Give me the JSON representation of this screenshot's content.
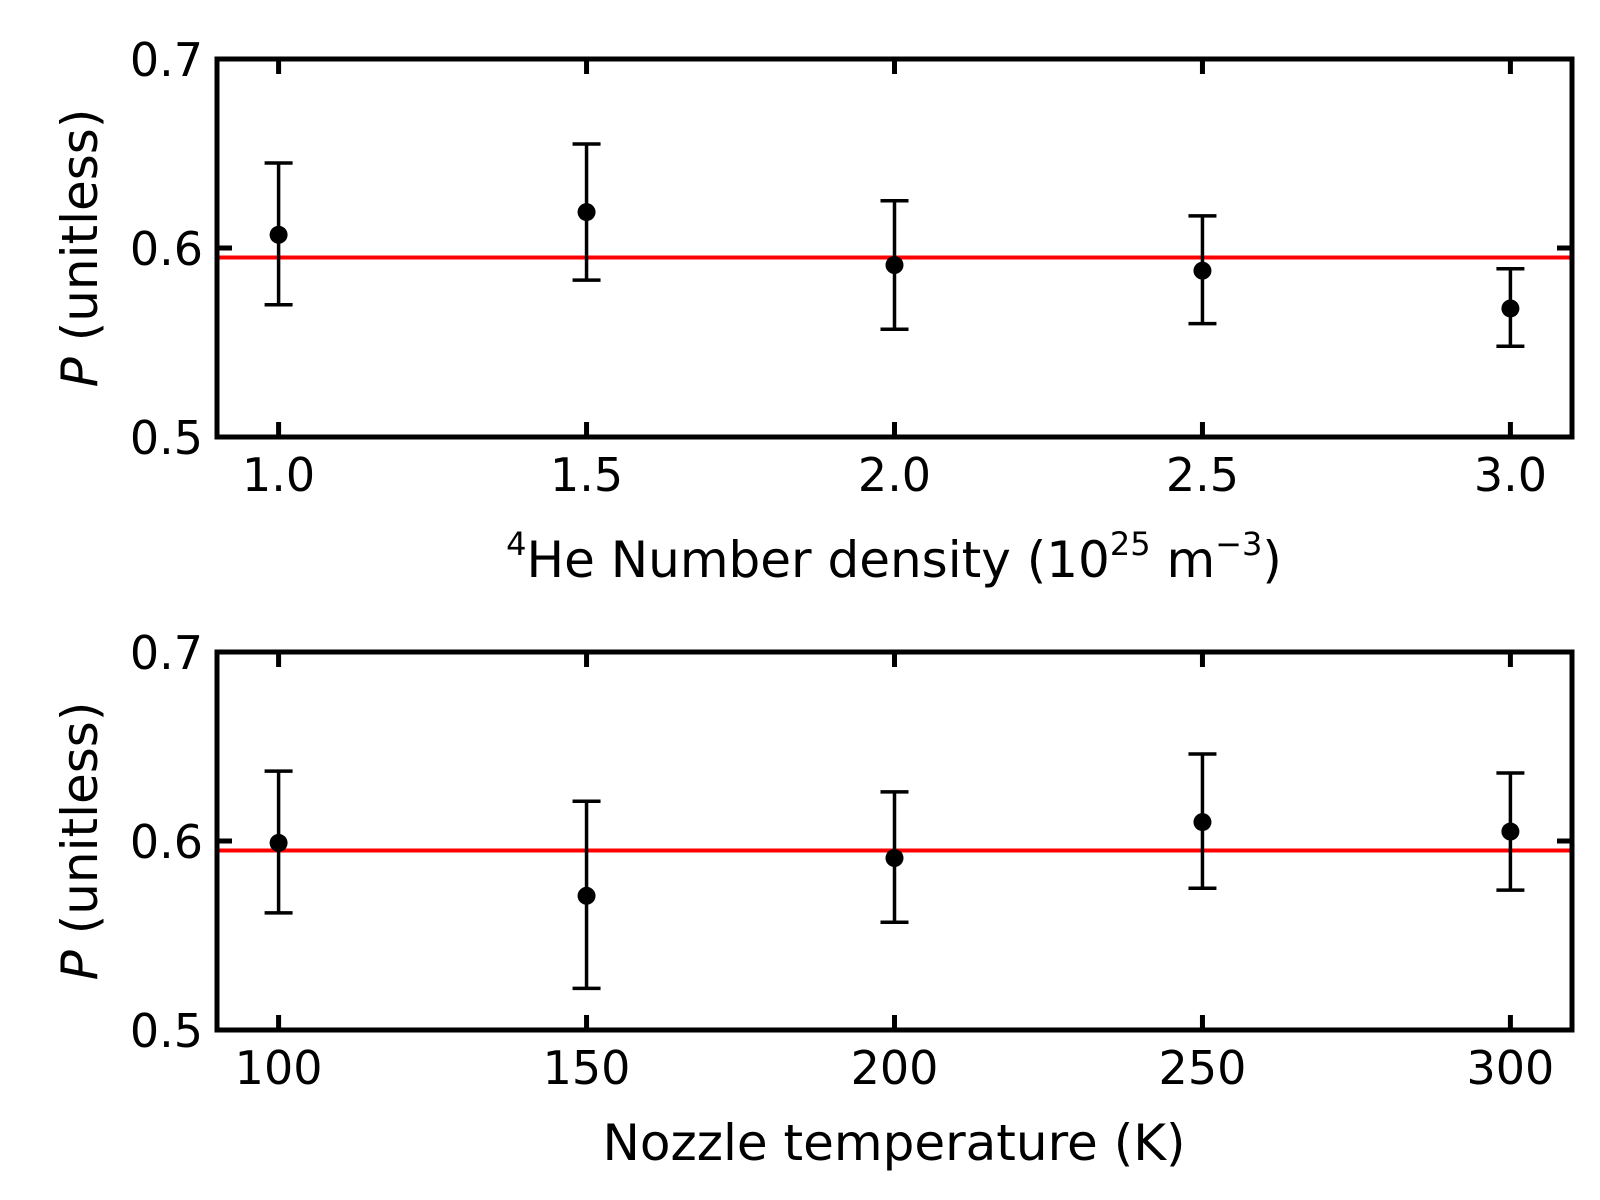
{
  "chart_data": [
    {
      "type": "scatter",
      "title": "",
      "xlabel": {
        "prefix_sup": "4",
        "main": "He Number density (10",
        "sup1": "25",
        "mid": " m",
        "sup2": "−3",
        "suffix": ")"
      },
      "ylabel": {
        "symbol": "P",
        "rest": " (unitless)"
      },
      "xlim": [
        0.9,
        3.1
      ],
      "ylim": [
        0.5,
        0.7
      ],
      "xticks": [
        1.0,
        1.5,
        2.0,
        2.5,
        3.0
      ],
      "xtick_labels": [
        "1.0",
        "1.5",
        "2.0",
        "2.5",
        "3.0"
      ],
      "yticks": [
        0.5,
        0.6,
        0.7
      ],
      "ytick_labels": [
        "0.5",
        "0.6",
        "0.7"
      ],
      "grid": false,
      "series": [
        {
          "x": [
            1.0,
            1.5,
            2.0,
            2.5,
            3.0
          ],
          "y": [
            0.607,
            0.619,
            0.591,
            0.588,
            0.568
          ],
          "yerr_low": [
            0.57,
            0.583,
            0.557,
            0.56,
            0.548
          ],
          "yerr_high": [
            0.645,
            0.655,
            0.625,
            0.617,
            0.589
          ],
          "color": "#000000"
        }
      ],
      "reference_line": {
        "y": 0.595,
        "color": "#ff0000"
      }
    },
    {
      "type": "scatter",
      "title": "",
      "xlabel": {
        "main": "Nozzle temperature (K)"
      },
      "ylabel": {
        "symbol": "P",
        "rest": " (unitless)"
      },
      "xlim": [
        90,
        310
      ],
      "ylim": [
        0.5,
        0.7
      ],
      "xticks": [
        100,
        150,
        200,
        250,
        300
      ],
      "xtick_labels": [
        "100",
        "150",
        "200",
        "250",
        "300"
      ],
      "yticks": [
        0.5,
        0.6,
        0.7
      ],
      "ytick_labels": [
        "0.5",
        "0.6",
        "0.7"
      ],
      "grid": false,
      "series": [
        {
          "x": [
            100,
            150,
            200,
            250,
            300
          ],
          "y": [
            0.599,
            0.571,
            0.591,
            0.61,
            0.605
          ],
          "yerr_low": [
            0.562,
            0.522,
            0.557,
            0.575,
            0.574
          ],
          "yerr_high": [
            0.637,
            0.621,
            0.626,
            0.646,
            0.636
          ],
          "color": "#000000"
        }
      ],
      "reference_line": {
        "y": 0.595,
        "color": "#ff0000"
      }
    }
  ]
}
